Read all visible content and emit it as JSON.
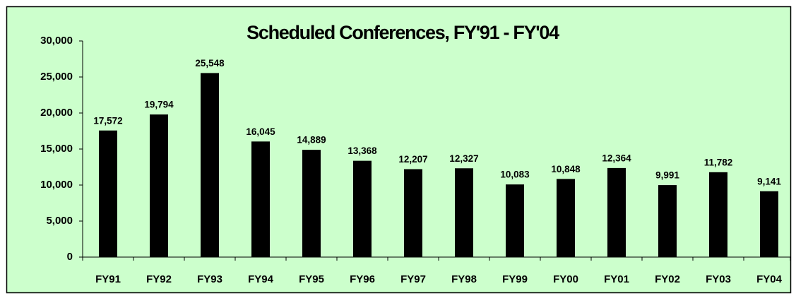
{
  "chart_data": {
    "type": "bar",
    "title": "Scheduled Conferences, FY'91 - FY'04",
    "categories": [
      "FY91",
      "FY92",
      "FY93",
      "FY94",
      "FY95",
      "FY96",
      "FY97",
      "FY98",
      "FY99",
      "FY00",
      "FY01",
      "FY02",
      "FY03",
      "FY04"
    ],
    "values": [
      17572,
      19794,
      25548,
      16045,
      14889,
      13368,
      12207,
      12327,
      10083,
      10848,
      12364,
      9991,
      11782,
      9141
    ],
    "value_labels": [
      "17,572",
      "19,794",
      "25,548",
      "16,045",
      "14,889",
      "13,368",
      "12,207",
      "12,327",
      "10,083",
      "10,848",
      "12,364",
      "9,991",
      "11,782",
      "9,141"
    ],
    "color": "#000000",
    "ylim": [
      0,
      30000
    ],
    "yticks": [
      0,
      {
        "value": 5000,
        "label": "5,000"
      },
      {
        "value": 10000,
        "label": "10,000"
      },
      {
        "value": 15000,
        "label": "15,000"
      },
      {
        "value": 20000,
        "label": "20,000"
      },
      {
        "value": 25000,
        "label": "25,000"
      },
      {
        "value": 30000,
        "label": "30,000"
      }
    ],
    "grid": false
  }
}
